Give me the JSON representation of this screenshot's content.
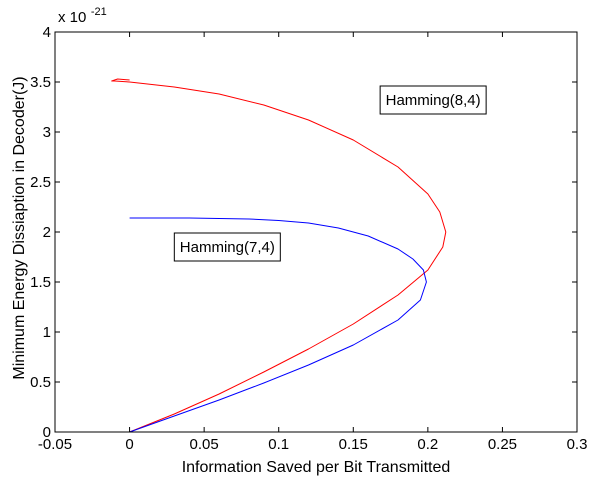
{
  "chart_data": {
    "type": "line",
    "title": "",
    "xlabel": "Information Saved per Bit Transmitted",
    "ylabel": "Minimum Energy Dissiaption in Decoder(J)",
    "xlim": [
      -0.05,
      0.3
    ],
    "ylim": [
      0,
      4
    ],
    "x_ticks": [
      -0.05,
      0,
      0.05,
      0.1,
      0.15,
      0.2,
      0.25,
      0.3
    ],
    "x_tick_labels": [
      "-0.05",
      "0",
      "0.05",
      "0.1",
      "0.15",
      "0.2",
      "0.25",
      "0.3"
    ],
    "y_ticks": [
      0,
      0.5,
      1,
      1.5,
      2,
      2.5,
      3,
      3.5,
      4
    ],
    "y_tick_labels": [
      "0",
      "0.5",
      "1",
      "1.5",
      "2",
      "2.5",
      "3",
      "3.5",
      "4"
    ],
    "y_multiplier": {
      "base": "x 10",
      "exponent": "-21"
    },
    "grid": false,
    "series": [
      {
        "color": "#ff0000",
        "x": [
          0.0,
          0.03,
          0.06,
          0.09,
          0.12,
          0.15,
          0.18,
          0.2,
          0.21,
          0.212,
          0.208,
          0.2,
          0.18,
          0.15,
          0.12,
          0.09,
          0.06,
          0.03,
          0.0,
          -0.01,
          -0.012,
          -0.008,
          0.0
        ],
        "y": [
          0.0,
          0.18,
          0.38,
          0.6,
          0.83,
          1.08,
          1.37,
          1.62,
          1.85,
          2.0,
          2.2,
          2.38,
          2.65,
          2.92,
          3.12,
          3.27,
          3.38,
          3.45,
          3.5,
          3.51,
          3.51,
          3.53,
          3.52
        ]
      },
      {
        "color": "#0000ff",
        "x": [
          0.0,
          0.03,
          0.06,
          0.09,
          0.12,
          0.15,
          0.18,
          0.195,
          0.199,
          0.197,
          0.19,
          0.18,
          0.16,
          0.14,
          0.12,
          0.1,
          0.08,
          0.06,
          0.04,
          0.02,
          0.0
        ],
        "y": [
          0.0,
          0.16,
          0.32,
          0.49,
          0.67,
          0.87,
          1.12,
          1.32,
          1.5,
          1.62,
          1.73,
          1.83,
          1.96,
          2.04,
          2.09,
          2.115,
          2.13,
          2.135,
          2.14,
          2.14,
          2.14
        ]
      }
    ],
    "annotations": [
      {
        "text": "Hamming(8,4)",
        "x": 0.168,
        "y": 3.32
      },
      {
        "text": "Hamming(7,4)",
        "x": 0.03,
        "y": 1.85
      }
    ]
  }
}
